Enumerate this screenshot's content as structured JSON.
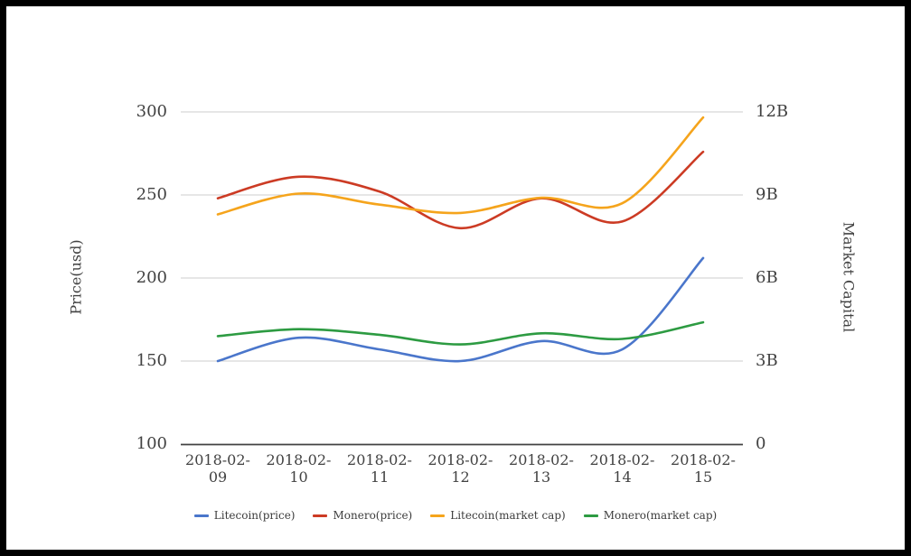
{
  "styles": {
    "background": "#ffffff",
    "frame_border": "#000000",
    "grid_line": "#cccccc",
    "axis_line": "#424242",
    "text": "#424242"
  },
  "chart_data": {
    "type": "line",
    "title": "",
    "smooth": true,
    "grid": "horizontal",
    "legend_position": "bottom",
    "categories": [
      "2018-02-09",
      "2018-02-10",
      "2018-02-11",
      "2018-02-12",
      "2018-02-13",
      "2018-02-14",
      "2018-02-15"
    ],
    "left_axis": {
      "label": "Price(usd)",
      "ticks": [
        "100",
        "150",
        "200",
        "250",
        "300"
      ],
      "min": 100,
      "max": 300,
      "unit": "USD"
    },
    "right_axis": {
      "label": "Market Capital",
      "ticks": [
        "0",
        "3B",
        "6B",
        "9B",
        "12B"
      ],
      "min": 0,
      "max": 12,
      "unit": "billions USD"
    },
    "series": [
      {
        "name": "Litecoin(price)",
        "yaxis": "left",
        "color": "#4A76CB",
        "unit": "USD",
        "values": [
          150,
          164,
          157,
          150,
          162,
          157,
          212
        ]
      },
      {
        "name": "Monero(price)",
        "yaxis": "left",
        "color": "#CC3B24",
        "unit": "USD",
        "values": [
          248,
          261,
          252,
          230,
          248,
          234,
          276
        ]
      },
      {
        "name": "Litecoin(market cap)",
        "yaxis": "right",
        "color": "#F5A41C",
        "unit": "billions USD",
        "values": [
          8.3,
          9.05,
          8.65,
          8.35,
          8.9,
          8.7,
          11.8
        ]
      },
      {
        "name": "Monero(market cap)",
        "yaxis": "right",
        "color": "#2D9B42",
        "unit": "billions USD",
        "values": [
          3.9,
          4.15,
          3.95,
          3.6,
          4.0,
          3.8,
          4.4
        ]
      }
    ]
  }
}
